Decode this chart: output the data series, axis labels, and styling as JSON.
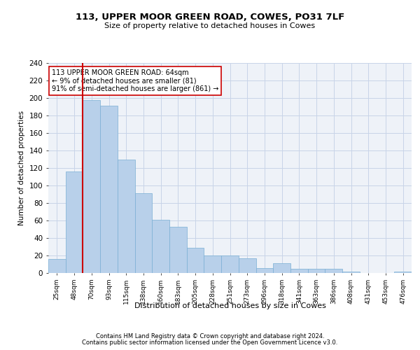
{
  "title1": "113, UPPER MOOR GREEN ROAD, COWES, PO31 7LF",
  "title2": "Size of property relative to detached houses in Cowes",
  "xlabel": "Distribution of detached houses by size in Cowes",
  "ylabel": "Number of detached properties",
  "categories": [
    "25sqm",
    "48sqm",
    "70sqm",
    "93sqm",
    "115sqm",
    "138sqm",
    "160sqm",
    "183sqm",
    "205sqm",
    "228sqm",
    "251sqm",
    "273sqm",
    "296sqm",
    "318sqm",
    "341sqm",
    "363sqm",
    "386sqm",
    "408sqm",
    "431sqm",
    "453sqm",
    "476sqm"
  ],
  "values": [
    16,
    116,
    198,
    191,
    130,
    91,
    61,
    53,
    29,
    20,
    20,
    17,
    6,
    11,
    5,
    5,
    5,
    2,
    0,
    0,
    2
  ],
  "bar_color": "#b8d0ea",
  "bar_edge_color": "#7aafd4",
  "grid_color": "#c8d4e8",
  "bg_color": "#eef2f8",
  "vline_color": "#cc0000",
  "annotation_text": "113 UPPER MOOR GREEN ROAD: 64sqm\n← 9% of detached houses are smaller (81)\n91% of semi-detached houses are larger (861) →",
  "annotation_box_color": "#ffffff",
  "annotation_box_edge": "#cc0000",
  "footnote1": "Contains HM Land Registry data © Crown copyright and database right 2024.",
  "footnote2": "Contains public sector information licensed under the Open Government Licence v3.0.",
  "ylim": [
    0,
    240
  ],
  "yticks": [
    0,
    20,
    40,
    60,
    80,
    100,
    120,
    140,
    160,
    180,
    200,
    220,
    240
  ]
}
